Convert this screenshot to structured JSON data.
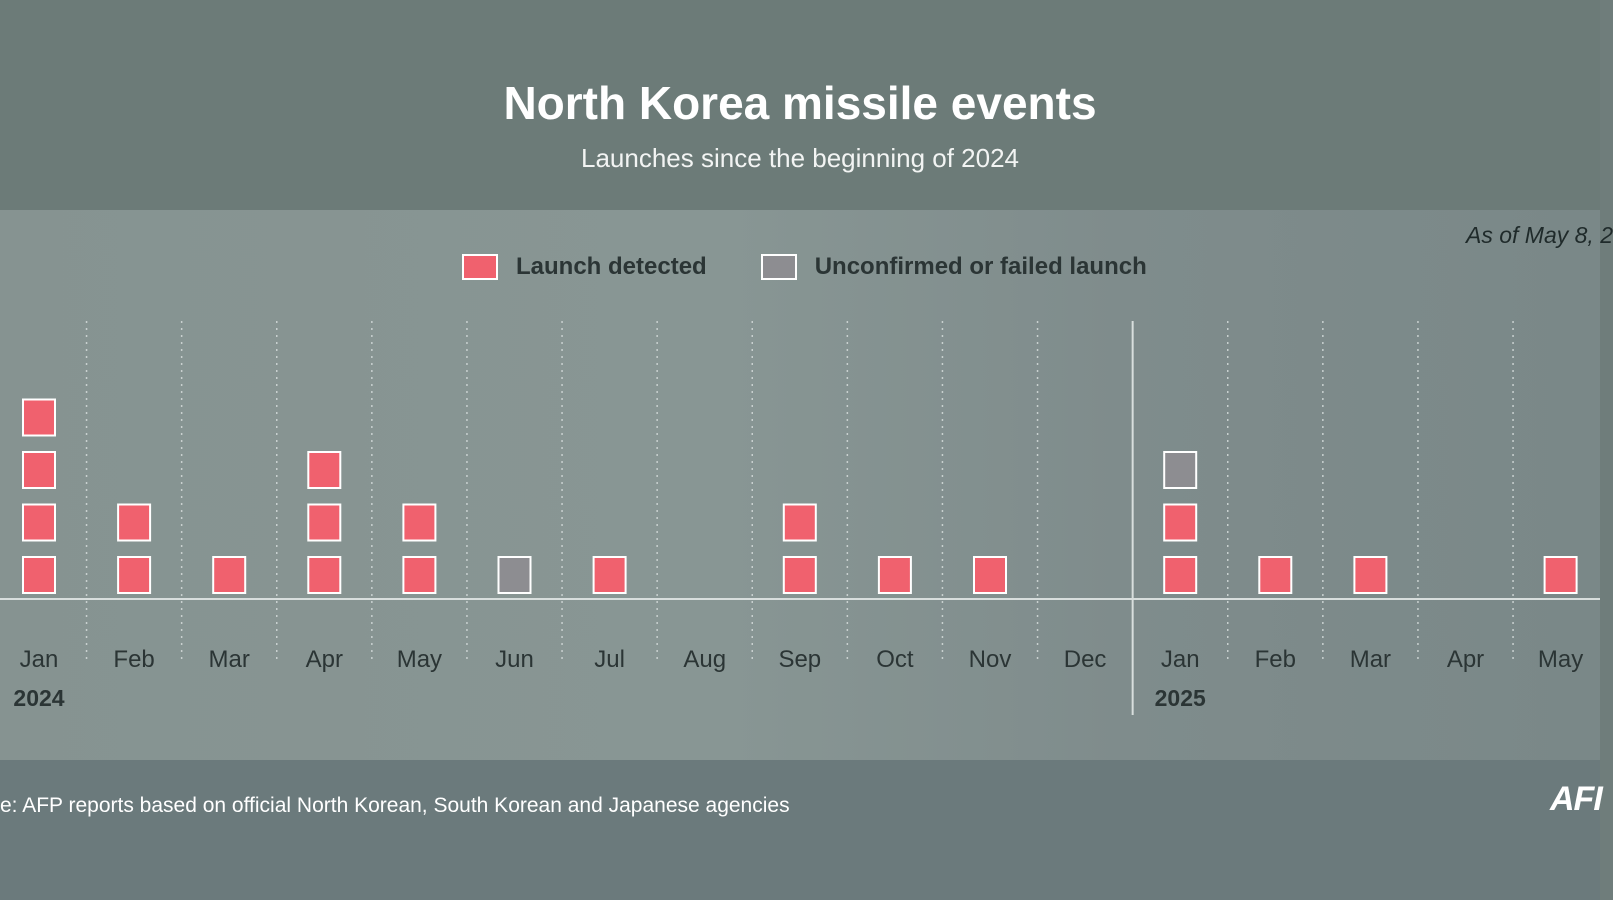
{
  "header": {
    "title": "North Korea missile events",
    "subtitle": "Launches since the beginning of 2024"
  },
  "note": "As of May 8, 2",
  "legend": [
    {
      "label": "Launch detected",
      "color": "#f0616e",
      "key": "launch-detected"
    },
    {
      "label": "Unconfirmed or failed launch",
      "color": "#8d8d91",
      "key": "unconfirmed-or-failed"
    }
  ],
  "footer": {
    "source": "e: AFP reports based on official North Korean, South Korean and Japanese agencies",
    "logo": "AFI"
  },
  "colors": {
    "launch": "#f0616e",
    "unconfirmed": "#8d8d91",
    "axis": "#d8dedd",
    "gridline": "#c8d0cf",
    "tick_label": "#2b3535"
  },
  "chart_data": {
    "type": "bar",
    "stacked": true,
    "title": "North Korea missile events",
    "subtitle": "Launches since the beginning of 2024",
    "categories": [
      "Jan",
      "Feb",
      "Mar",
      "Apr",
      "May",
      "Jun",
      "Jul",
      "Aug",
      "Sep",
      "Oct",
      "Nov",
      "Dec",
      "Jan",
      "Feb",
      "Mar",
      "Apr",
      "May"
    ],
    "year_labels": [
      {
        "label": "2024",
        "category_index": 0
      },
      {
        "label": "2025",
        "category_index": 12
      }
    ],
    "series": [
      {
        "name": "Launch detected",
        "values": [
          4,
          2,
          1,
          3,
          2,
          0,
          1,
          0,
          2,
          1,
          1,
          0,
          2,
          1,
          1,
          0,
          1
        ]
      },
      {
        "name": "Unconfirmed or failed launch",
        "values": [
          0,
          0,
          0,
          0,
          0,
          1,
          0,
          0,
          0,
          0,
          0,
          0,
          1,
          0,
          0,
          0,
          0
        ]
      }
    ],
    "ylim": [
      0,
      5
    ],
    "grid": "vertical-dotted",
    "legend_position": "top-center"
  }
}
